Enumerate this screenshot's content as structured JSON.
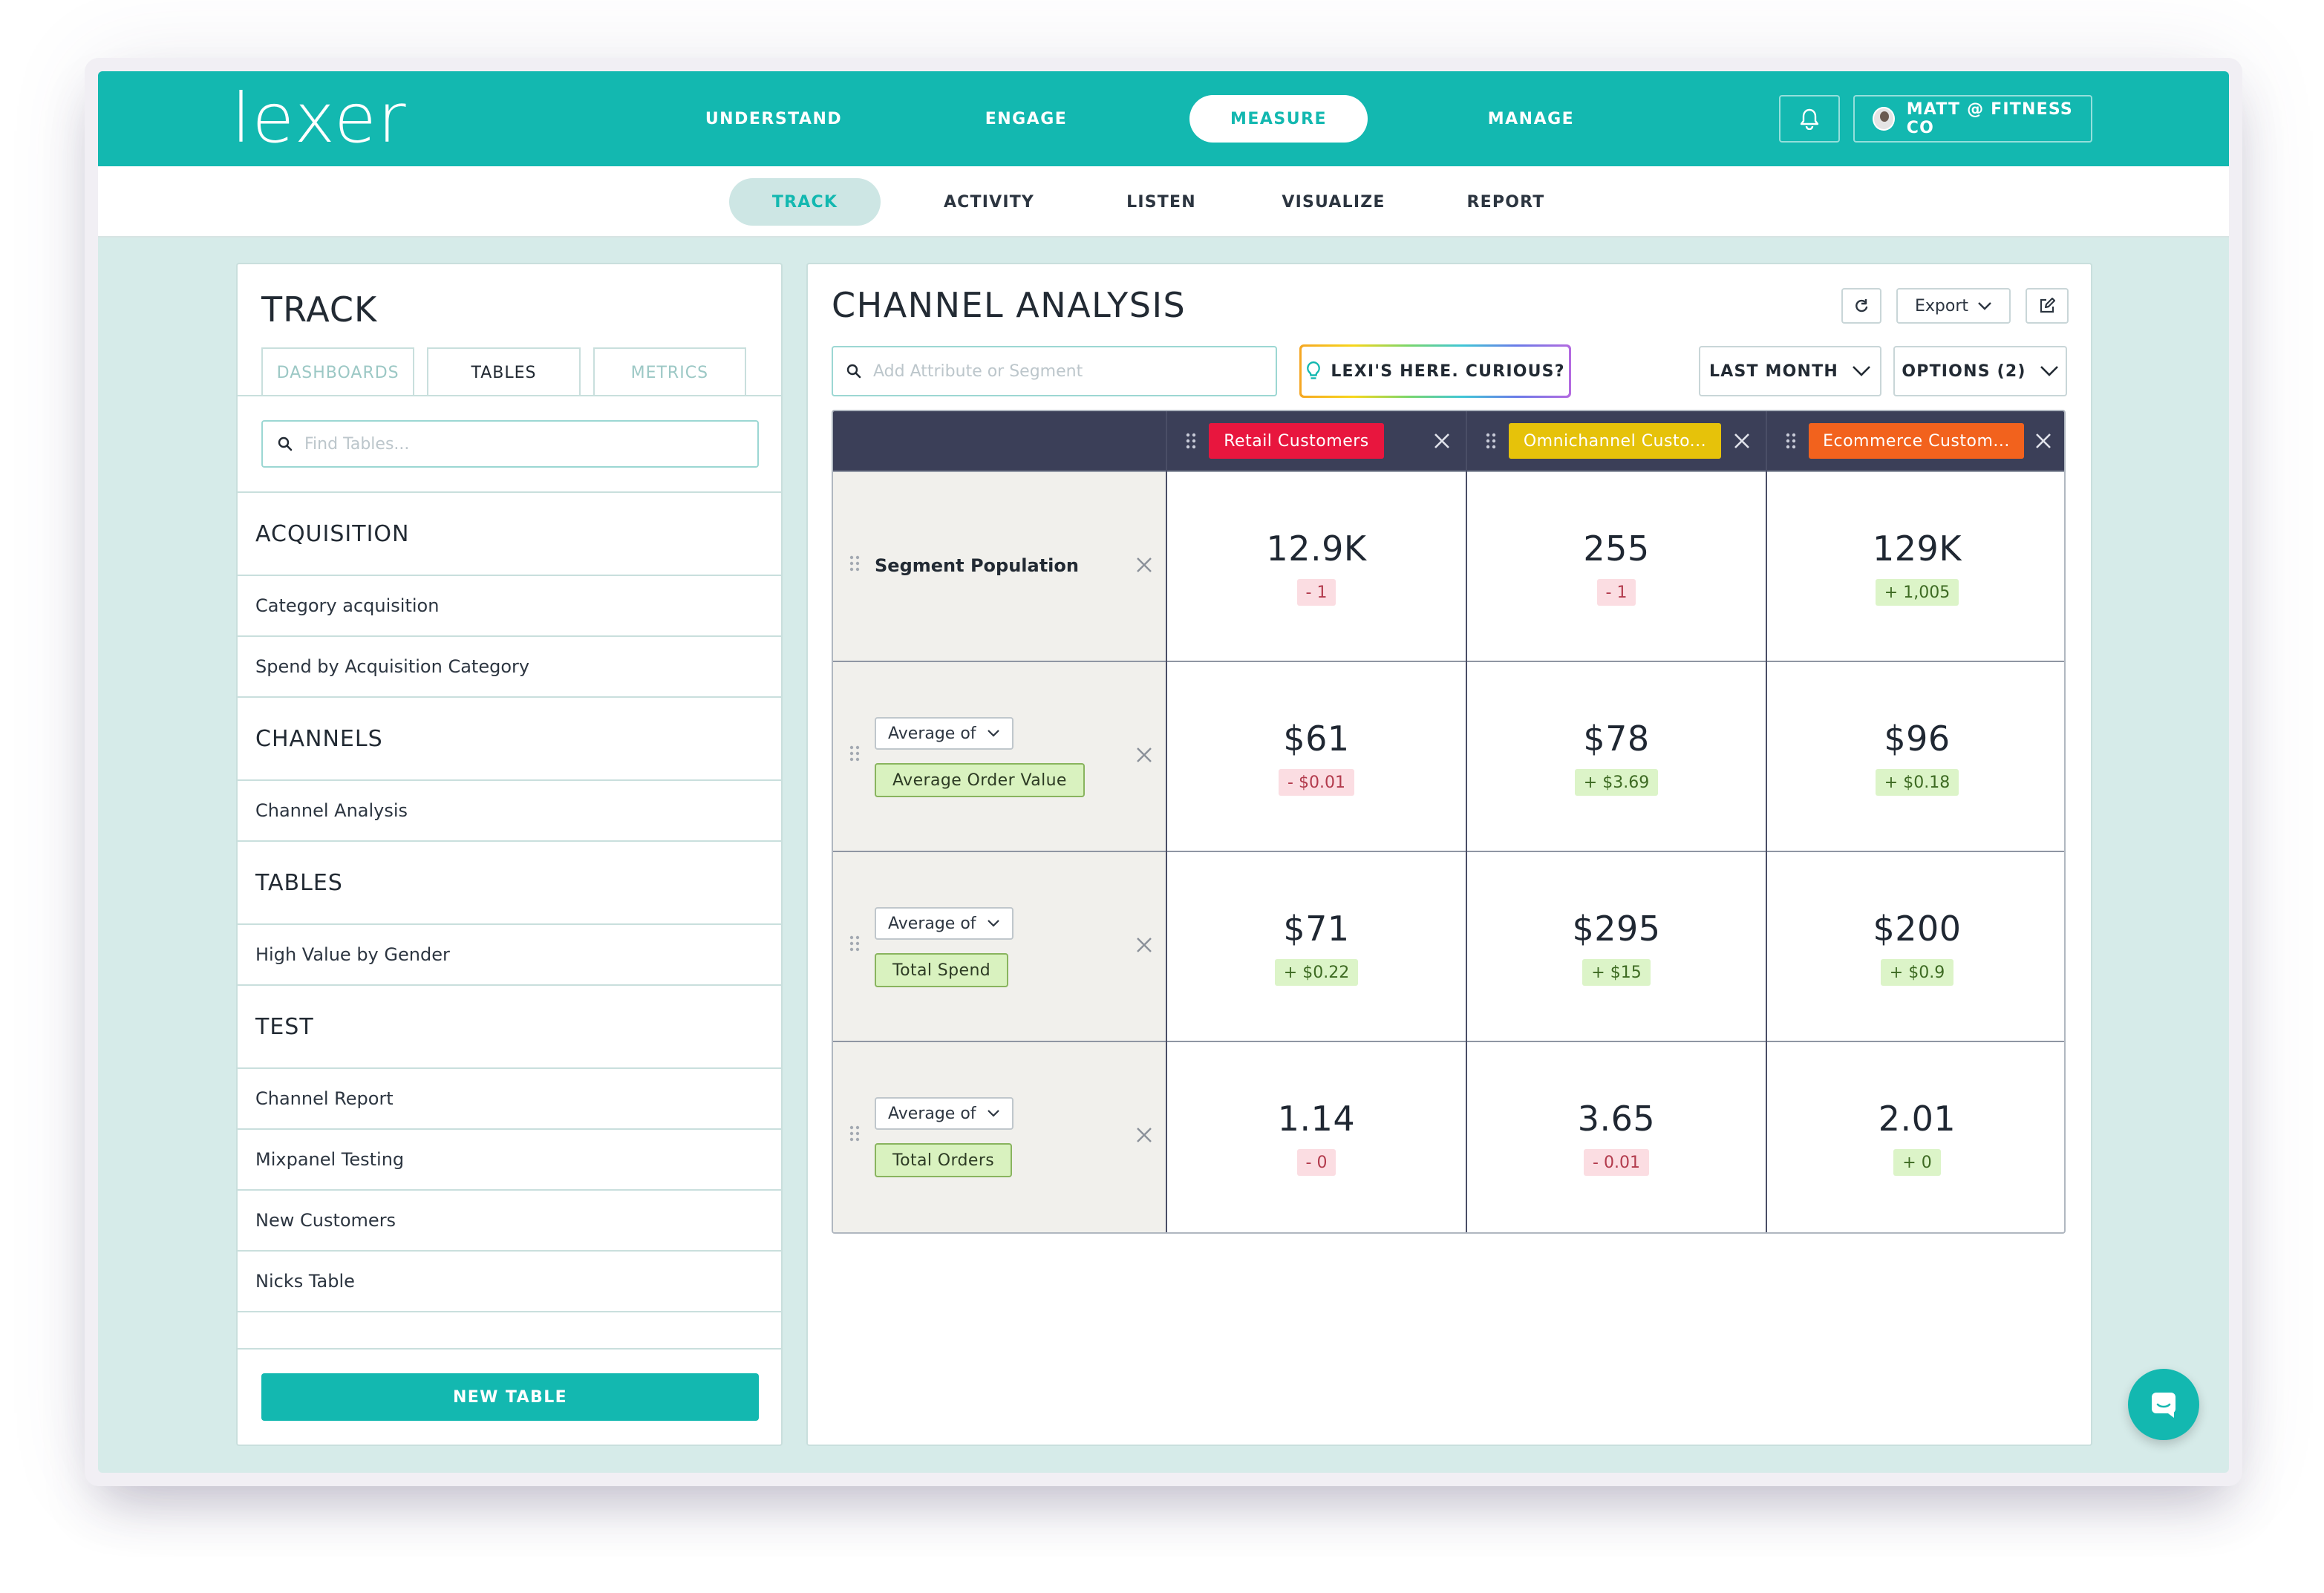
{
  "brand": {
    "logo_text": "lexer",
    "accent": "#13b8b0"
  },
  "main_nav": [
    {
      "label": "UNDERSTAND",
      "active": false
    },
    {
      "label": "ENGAGE",
      "active": false
    },
    {
      "label": "MEASURE",
      "active": true
    },
    {
      "label": "MANAGE",
      "active": false
    }
  ],
  "header": {
    "notifications_icon": "bell-icon",
    "user_label": "MATT @ FITNESS CO"
  },
  "sub_nav": [
    {
      "label": "TRACK",
      "active": true
    },
    {
      "label": "ACTIVITY",
      "active": false
    },
    {
      "label": "LISTEN",
      "active": false
    },
    {
      "label": "VISUALIZE",
      "active": false
    },
    {
      "label": "REPORT",
      "active": false
    }
  ],
  "left_panel": {
    "title": "TRACK",
    "tabs": [
      {
        "label": "DASHBOARDS",
        "active": false
      },
      {
        "label": "TABLES",
        "active": true
      },
      {
        "label": "METRICS",
        "active": false
      }
    ],
    "find_placeholder": "Find Tables...",
    "groups": [
      {
        "title": "ACQUISITION",
        "items": [
          "Category acquisition",
          "Spend by Acquisition Category"
        ]
      },
      {
        "title": "CHANNELS",
        "items": [
          "Channel Analysis"
        ]
      },
      {
        "title": "TABLES",
        "items": [
          "High Value by Gender"
        ]
      },
      {
        "title": "TEST",
        "items": [
          "Channel Report",
          "Mixpanel Testing",
          "New Customers",
          "Nicks Table"
        ]
      }
    ],
    "new_table_label": "NEW TABLE"
  },
  "right_panel": {
    "title": "CHANNEL ANALYSIS",
    "export_label": "Export",
    "attr_placeholder": "Add Attribute or Segment",
    "lexi_label": "LEXI'S HERE. CURIOUS?",
    "period_label": "LAST MONTH",
    "options_label": "OPTIONS (2)"
  },
  "table": {
    "segments": [
      {
        "label": "Retail Customers",
        "color": "#e8163e"
      },
      {
        "label": "Omnichannel Custo...",
        "color": "#e6c20a"
      },
      {
        "label": "Ecommerce Custom...",
        "color": "#f2621d"
      }
    ],
    "rows": [
      {
        "label": "Segment Population",
        "aggregation": null,
        "metric": null,
        "cells": [
          {
            "value": "12.9K",
            "delta": "- 1",
            "trend": "neg"
          },
          {
            "value": "255",
            "delta": "- 1",
            "trend": "neg"
          },
          {
            "value": "129K",
            "delta": "+ 1,005",
            "trend": "pos"
          }
        ]
      },
      {
        "label": null,
        "aggregation": "Average of",
        "metric": "Average Order Value",
        "cells": [
          {
            "value": "$61",
            "delta": "- $0.01",
            "trend": "neg"
          },
          {
            "value": "$78",
            "delta": "+ $3.69",
            "trend": "pos"
          },
          {
            "value": "$96",
            "delta": "+ $0.18",
            "trend": "pos"
          }
        ]
      },
      {
        "label": null,
        "aggregation": "Average of",
        "metric": "Total Spend",
        "cells": [
          {
            "value": "$71",
            "delta": "+ $0.22",
            "trend": "pos"
          },
          {
            "value": "$295",
            "delta": "+ $15",
            "trend": "pos"
          },
          {
            "value": "$200",
            "delta": "+ $0.9",
            "trend": "pos"
          }
        ]
      },
      {
        "label": null,
        "aggregation": "Average of",
        "metric": "Total Orders",
        "cells": [
          {
            "value": "1.14",
            "delta": "- 0",
            "trend": "neg"
          },
          {
            "value": "3.65",
            "delta": "- 0.01",
            "trend": "neg"
          },
          {
            "value": "2.01",
            "delta": "+ 0",
            "trend": "pos"
          }
        ]
      }
    ]
  }
}
